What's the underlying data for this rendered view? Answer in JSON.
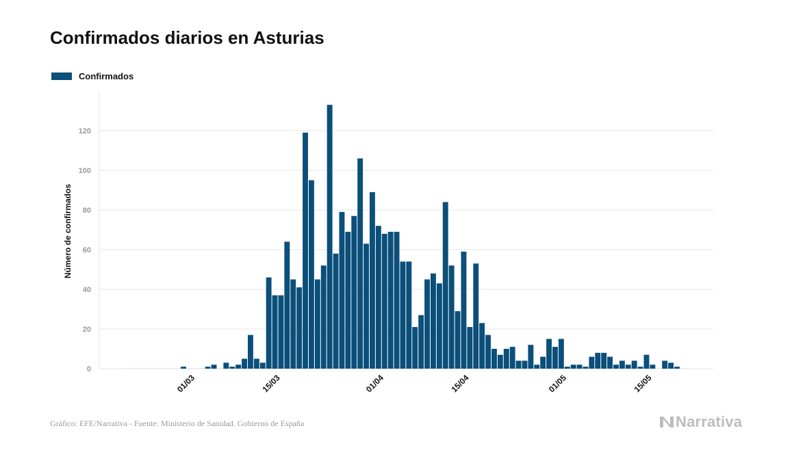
{
  "colors": {
    "bar": "#0b4f7a",
    "grid": "#e6e6e6",
    "tick": "#999999",
    "title": "#111111",
    "brand": "#bdbdbd"
  },
  "footer": {
    "source": "Gráfico: EFE/Narrativa - Fuente: Ministerio de Sanidad. Gobierno de España"
  },
  "brand": {
    "name": "Narrativa",
    "icon": "narrativa-n-logo-icon"
  },
  "chart_data": {
    "type": "bar",
    "title": "Confirmados diarios en Asturias",
    "ylabel": "Número de confirmados",
    "xlabel": "",
    "legend": {
      "position": "top-left",
      "entries": [
        "Confirmados"
      ]
    },
    "grid": true,
    "ylim": [
      0,
      140
    ],
    "yticks": [
      0,
      20,
      40,
      60,
      80,
      100,
      120
    ],
    "x_start": "2020-02-20",
    "xticks": [
      {
        "label": "01/03",
        "date": "2020-03-01"
      },
      {
        "label": "15/03",
        "date": "2020-03-15"
      },
      {
        "label": "01/04",
        "date": "2020-04-01"
      },
      {
        "label": "15/04",
        "date": "2020-04-15"
      },
      {
        "label": "01/05",
        "date": "2020-05-01"
      },
      {
        "label": "15/05",
        "date": "2020-05-15"
      }
    ],
    "series": [
      {
        "name": "Confirmados",
        "values": [
          0,
          0,
          0,
          0,
          0,
          0,
          0,
          0,
          0,
          1,
          0,
          0,
          0,
          1,
          2,
          0,
          3,
          1,
          2,
          5,
          17,
          5,
          3,
          46,
          37,
          37,
          64,
          45,
          41,
          119,
          95,
          45,
          52,
          133,
          58,
          79,
          69,
          77,
          106,
          63,
          89,
          72,
          68,
          69,
          69,
          54,
          54,
          21,
          27,
          45,
          48,
          43,
          84,
          52,
          29,
          59,
          21,
          53,
          23,
          17,
          10,
          7,
          10,
          11,
          4,
          4,
          12,
          2,
          6,
          15,
          11,
          15,
          1,
          2,
          2,
          1,
          6,
          8,
          8,
          6,
          2,
          4,
          2,
          4,
          1,
          7,
          2,
          0,
          4,
          3,
          1,
          0
        ]
      }
    ]
  }
}
